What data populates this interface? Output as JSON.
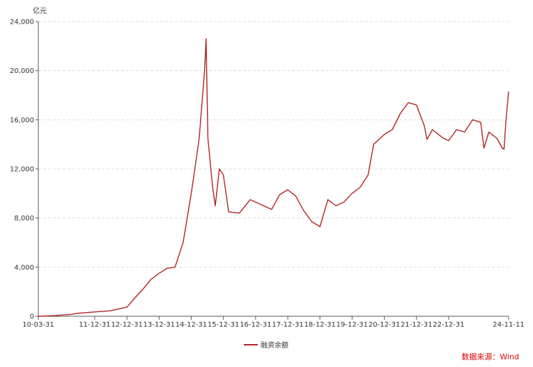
{
  "chart_data": {
    "type": "line",
    "unit_label": "亿元",
    "ylim": [
      0,
      24000
    ],
    "yticks": [
      0,
      4000,
      8000,
      12000,
      16000,
      20000,
      24000
    ],
    "ytick_labels": [
      "0",
      "4,000",
      "8,000",
      "12,000",
      "16,000",
      "20,000",
      "24,000"
    ],
    "xlim": [
      "2010-03-31",
      "2024-11-11"
    ],
    "xticks": [
      "2010-03-31",
      "2011-12-31",
      "2012-12-31",
      "2013-12-31",
      "2014-12-31",
      "2015-12-31",
      "2016-12-31",
      "2017-12-31",
      "2018-12-31",
      "2019-12-31",
      "2020-12-31",
      "2021-12-31",
      "2022-12-31",
      "2024-11-11"
    ],
    "xtick_labels": [
      "10-03-31",
      "11-12-31",
      "12-12-31",
      "13-12-31",
      "14-12-31",
      "15-12-31",
      "16-12-31",
      "17-12-31",
      "18-12-31",
      "19-12-31",
      "20-12-31",
      "21-12-31",
      "22-12-31",
      "24-11-11"
    ],
    "grid": "horizontal-dashed",
    "legend_position": "bottom-center",
    "series": [
      {
        "name": "融资余额",
        "color": "#b22222",
        "points": [
          [
            "2010-03-31",
            0
          ],
          [
            "2010-09-30",
            50
          ],
          [
            "2011-03-31",
            150
          ],
          [
            "2011-06-30",
            250
          ],
          [
            "2011-12-31",
            350
          ],
          [
            "2012-06-30",
            450
          ],
          [
            "2012-12-31",
            750
          ],
          [
            "2013-03-31",
            1500
          ],
          [
            "2013-06-30",
            2200
          ],
          [
            "2013-09-30",
            3000
          ],
          [
            "2013-12-31",
            3500
          ],
          [
            "2014-03-31",
            3900
          ],
          [
            "2014-06-30",
            4000
          ],
          [
            "2014-09-30",
            6000
          ],
          [
            "2014-12-31",
            10000
          ],
          [
            "2015-01-31",
            11500
          ],
          [
            "2015-03-31",
            14500
          ],
          [
            "2015-05-31",
            20000
          ],
          [
            "2015-06-18",
            22600
          ],
          [
            "2015-07-08",
            14500
          ],
          [
            "2015-08-31",
            10500
          ],
          [
            "2015-09-30",
            9000
          ],
          [
            "2015-11-15",
            12000
          ],
          [
            "2015-12-31",
            11500
          ],
          [
            "2016-02-29",
            8500
          ],
          [
            "2016-06-30",
            8400
          ],
          [
            "2016-10-31",
            9500
          ],
          [
            "2016-12-31",
            9300
          ],
          [
            "2017-03-31",
            9000
          ],
          [
            "2017-06-30",
            8700
          ],
          [
            "2017-09-30",
            9900
          ],
          [
            "2017-12-31",
            10300
          ],
          [
            "2018-03-31",
            9800
          ],
          [
            "2018-06-30",
            8600
          ],
          [
            "2018-09-30",
            7700
          ],
          [
            "2018-12-31",
            7300
          ],
          [
            "2019-03-31",
            9500
          ],
          [
            "2019-06-30",
            9000
          ],
          [
            "2019-09-30",
            9300
          ],
          [
            "2019-12-31",
            10000
          ],
          [
            "2020-03-31",
            10500
          ],
          [
            "2020-06-30",
            11500
          ],
          [
            "2020-08-31",
            14000
          ],
          [
            "2020-12-31",
            14800
          ],
          [
            "2021-03-31",
            15200
          ],
          [
            "2021-06-30",
            16500
          ],
          [
            "2021-09-30",
            17400
          ],
          [
            "2021-12-31",
            17200
          ],
          [
            "2022-03-31",
            15500
          ],
          [
            "2022-04-30",
            14400
          ],
          [
            "2022-06-30",
            15200
          ],
          [
            "2022-10-31",
            14500
          ],
          [
            "2022-12-31",
            14300
          ],
          [
            "2023-03-31",
            15200
          ],
          [
            "2023-06-30",
            15000
          ],
          [
            "2023-09-30",
            16000
          ],
          [
            "2023-12-31",
            15800
          ],
          [
            "2024-02-05",
            13700
          ],
          [
            "2024-03-31",
            15000
          ],
          [
            "2024-06-30",
            14500
          ],
          [
            "2024-08-31",
            13700
          ],
          [
            "2024-09-20",
            13600
          ],
          [
            "2024-10-10",
            15800
          ],
          [
            "2024-11-11",
            18300
          ]
        ]
      }
    ],
    "legend": {
      "label": "融资余额"
    },
    "source": "数据来源：Wind",
    "source_color": "#e00000"
  }
}
